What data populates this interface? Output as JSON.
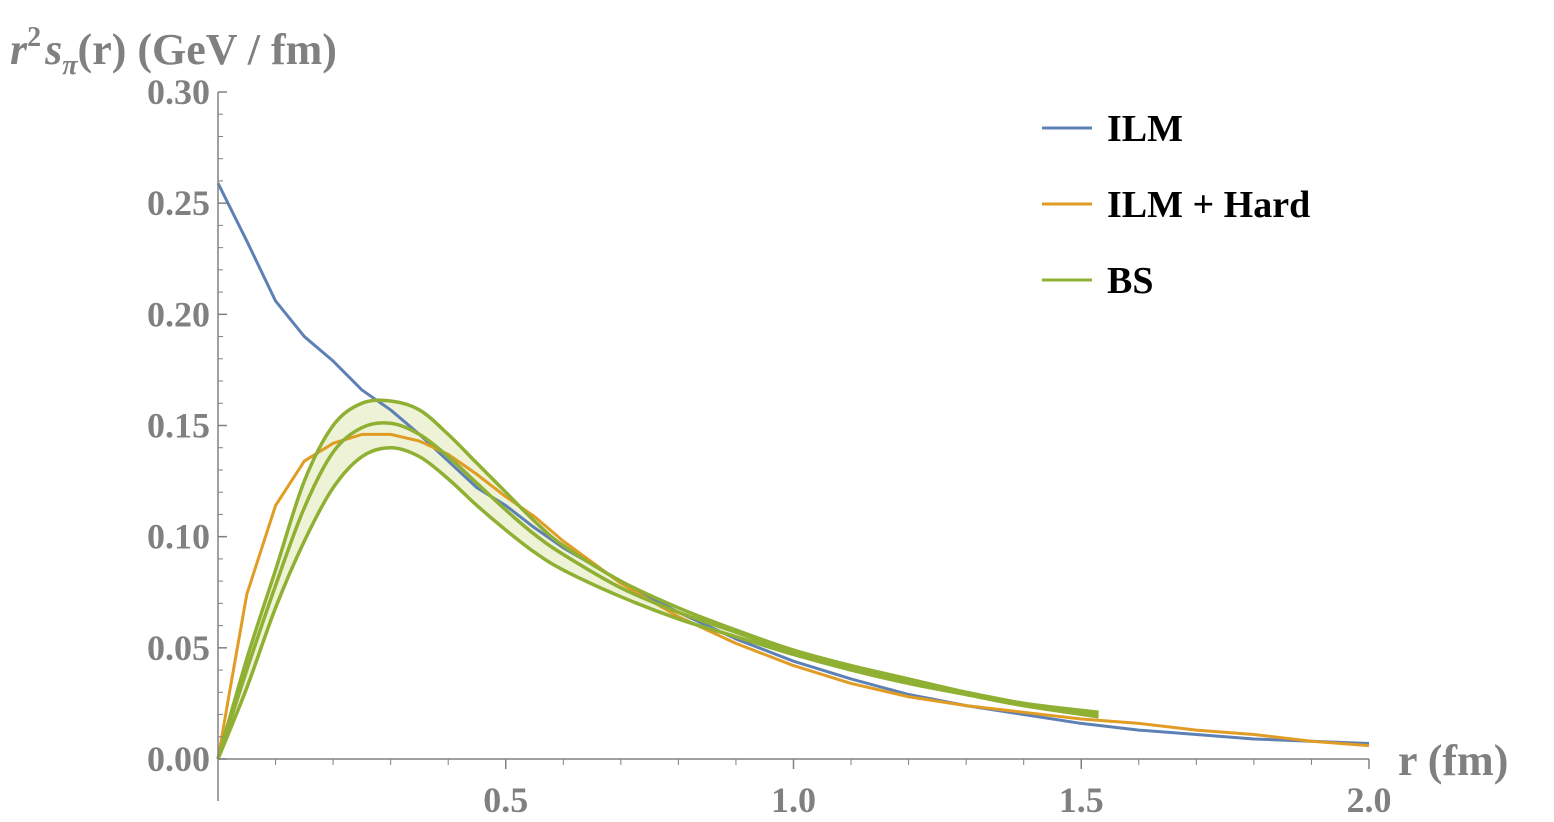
{
  "chart_data": {
    "type": "line",
    "title": "",
    "ylabel": {
      "r": "r",
      "sup": "2",
      "s": "s",
      "sub": "π",
      "rest": "(r) (GeV / fm)"
    },
    "xlabel": "r (fm)",
    "xlim": [
      0,
      2.0
    ],
    "ylim": [
      0,
      0.3
    ],
    "x_ticks": [
      {
        "value": 0.5,
        "label": "0.5"
      },
      {
        "value": 1.0,
        "label": "1.0"
      },
      {
        "value": 1.5,
        "label": "1.5"
      },
      {
        "value": 2.0,
        "label": "2.0"
      }
    ],
    "y_ticks": [
      {
        "value": 0.0,
        "label": "0.00"
      },
      {
        "value": 0.05,
        "label": "0.05"
      },
      {
        "value": 0.1,
        "label": "0.10"
      },
      {
        "value": 0.15,
        "label": "0.15"
      },
      {
        "value": 0.2,
        "label": "0.20"
      },
      {
        "value": 0.25,
        "label": "0.25"
      },
      {
        "value": 0.3,
        "label": "0.30"
      }
    ],
    "grid": false,
    "legend_position": "top-right",
    "series": [
      {
        "name": "ILM",
        "color": "#5e81b5",
        "x": [
          0.0,
          0.05,
          0.1,
          0.15,
          0.2,
          0.25,
          0.3,
          0.35,
          0.4,
          0.45,
          0.5,
          0.55,
          0.6,
          0.7,
          0.8,
          0.9,
          1.0,
          1.1,
          1.2,
          1.3,
          1.4,
          1.5,
          1.6,
          1.7,
          1.8,
          1.9,
          2.0
        ],
        "y": [
          0.259,
          0.233,
          0.206,
          0.19,
          0.179,
          0.166,
          0.157,
          0.146,
          0.134,
          0.122,
          0.114,
          0.104,
          0.095,
          0.08,
          0.066,
          0.054,
          0.044,
          0.036,
          0.029,
          0.024,
          0.02,
          0.016,
          0.013,
          0.011,
          0.009,
          0.008,
          0.007
        ]
      },
      {
        "name": "ILM + Hard",
        "color": "#e19c24",
        "x": [
          0.0,
          0.02,
          0.05,
          0.1,
          0.15,
          0.2,
          0.25,
          0.3,
          0.35,
          0.4,
          0.45,
          0.5,
          0.55,
          0.6,
          0.7,
          0.8,
          0.9,
          1.0,
          1.1,
          1.2,
          1.3,
          1.4,
          1.5,
          1.6,
          1.7,
          1.8,
          1.9,
          2.0
        ],
        "y": [
          0.0,
          0.03,
          0.074,
          0.114,
          0.134,
          0.142,
          0.146,
          0.146,
          0.143,
          0.137,
          0.128,
          0.118,
          0.109,
          0.098,
          0.079,
          0.064,
          0.052,
          0.042,
          0.034,
          0.028,
          0.024,
          0.021,
          0.018,
          0.016,
          0.013,
          0.011,
          0.008,
          0.006
        ]
      },
      {
        "name": "BS",
        "color": "#8fb032",
        "band_fill": "#eef3d8",
        "x": [
          0.0,
          0.05,
          0.1,
          0.15,
          0.2,
          0.25,
          0.3,
          0.35,
          0.4,
          0.45,
          0.5,
          0.55,
          0.6,
          0.7,
          0.8,
          0.9,
          1.0,
          1.1,
          1.2,
          1.3,
          1.4,
          1.53
        ],
        "upper": [
          0.0,
          0.045,
          0.085,
          0.125,
          0.15,
          0.16,
          0.161,
          0.157,
          0.146,
          0.133,
          0.12,
          0.107,
          0.096,
          0.08,
          0.068,
          0.058,
          0.049,
          0.042,
          0.036,
          0.03,
          0.025,
          0.021
        ],
        "center": [
          0.0,
          0.04,
          0.078,
          0.113,
          0.138,
          0.149,
          0.151,
          0.146,
          0.136,
          0.124,
          0.112,
          0.101,
          0.092,
          0.077,
          0.066,
          0.057,
          0.048,
          0.041,
          0.035,
          0.03,
          0.025,
          0.02
        ],
        "lower": [
          0.0,
          0.032,
          0.068,
          0.098,
          0.122,
          0.136,
          0.14,
          0.136,
          0.126,
          0.114,
          0.103,
          0.093,
          0.085,
          0.073,
          0.063,
          0.055,
          0.047,
          0.04,
          0.034,
          0.029,
          0.024,
          0.019
        ]
      }
    ]
  }
}
